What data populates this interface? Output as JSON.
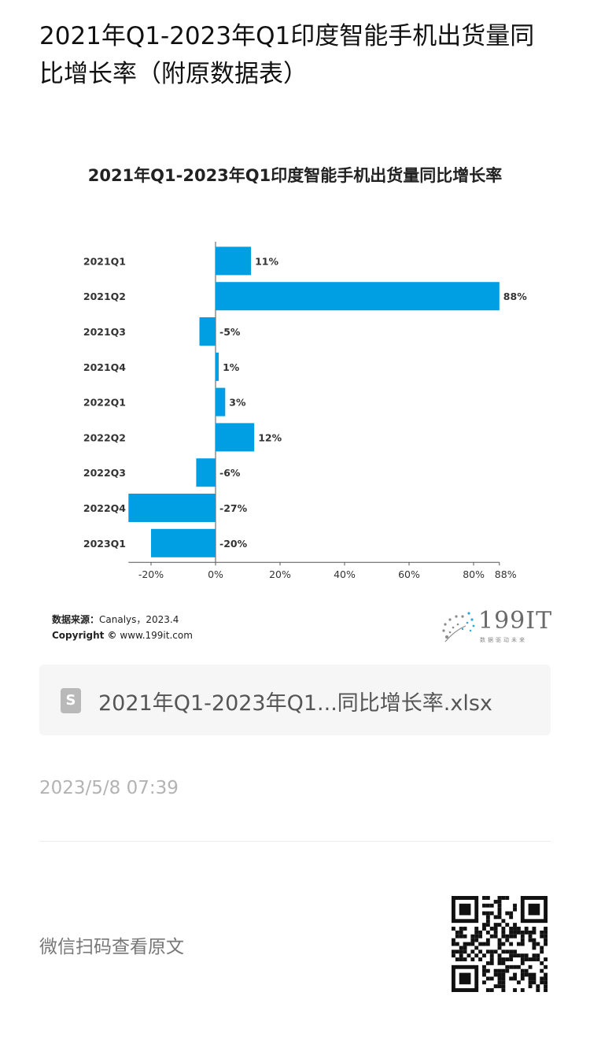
{
  "article": {
    "title": "2021年Q1-2023年Q1印度智能手机出货量同比增长率（附原数据表）"
  },
  "chart_data": {
    "type": "bar",
    "orientation": "horizontal",
    "title": "2021年Q1-2023年Q1印度智能手机出货量同比增长率",
    "categories": [
      "2021Q1",
      "2021Q2",
      "2021Q3",
      "2021Q4",
      "2022Q1",
      "2022Q2",
      "2022Q3",
      "2022Q4",
      "2023Q1"
    ],
    "values": [
      11,
      88,
      -5,
      1,
      3,
      12,
      -6,
      -27,
      -20
    ],
    "value_labels": [
      "11%",
      "88%",
      "-5%",
      "1%",
      "3%",
      "12%",
      "-6%",
      "-27%",
      "-20%"
    ],
    "xlim": [
      -27,
      88
    ],
    "x_ticks": [
      -20,
      0,
      20,
      40,
      60,
      80,
      88
    ],
    "x_tick_labels": [
      "-20%",
      "0%",
      "20%",
      "40%",
      "60%",
      "80%",
      "88%"
    ],
    "bar_color": "#009fe3",
    "grid": false
  },
  "source": {
    "label": "数据来源：",
    "text": "Canalys，2023.4",
    "copyright_label": "Copyright ©",
    "copyright_text": "www.199it.com"
  },
  "logo": {
    "name": "199IT",
    "tagline": "数据驱动未来"
  },
  "attachment": {
    "file_name": "2021年Q1-2023年Q1...同比增长率.xlsx",
    "icon_glyph": "S"
  },
  "meta": {
    "timestamp": "2023/5/8 07:39"
  },
  "footer": {
    "qr_hint": "微信扫码查看原文"
  }
}
